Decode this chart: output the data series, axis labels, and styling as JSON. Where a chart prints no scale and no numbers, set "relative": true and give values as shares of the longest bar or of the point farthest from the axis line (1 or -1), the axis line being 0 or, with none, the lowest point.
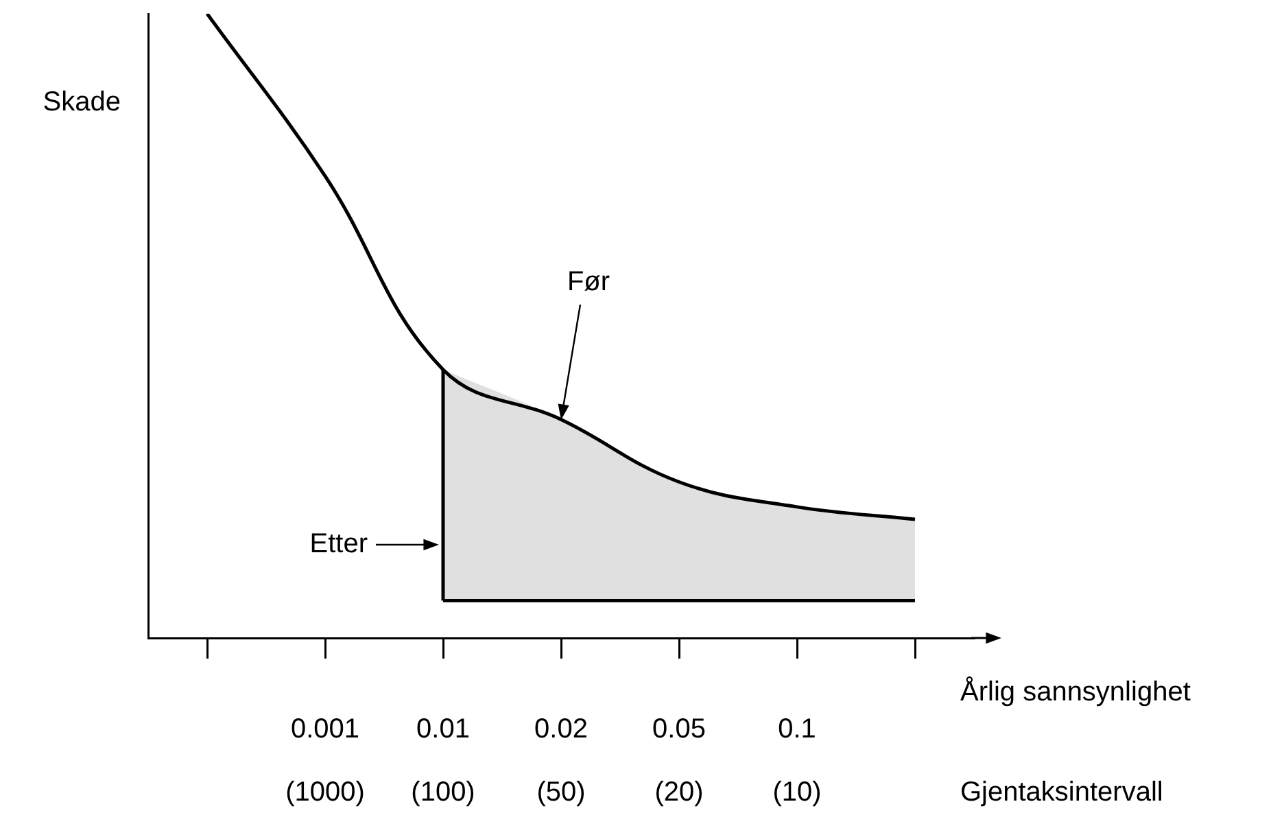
{
  "chart_data": {
    "type": "line",
    "relative": true,
    "ylabel": "Skade",
    "xlabel": "Årlig sannsynlighet",
    "categories": [
      null,
      "0.001",
      "0.01",
      "0.02",
      "0.05",
      "0.1",
      null
    ],
    "series": [
      {
        "type": "line",
        "color": "#000000",
        "values": [
          1.0,
          0.74,
          0.43,
          0.35,
          0.25,
          0.21,
          0.19
        ]
      },
      {
        "type": "area",
        "color": "#e0e0e0",
        "values": [
          null,
          null,
          0.43,
          0.35,
          0.25,
          0.21,
          0.19
        ]
      },
      {
        "type": "line",
        "color": "#000000",
        "values": [
          null,
          null,
          0.06,
          0.06,
          0.06,
          0.06,
          0.06
        ]
      },
      {
        "type": "line",
        "color": "#000000",
        "x": [
          "0.01",
          "0.01"
        ],
        "values": [
          0.06,
          0.43
        ]
      }
    ],
    "annotations": [
      {
        "text": "Før",
        "x": "0.02",
        "y": 0.35
      },
      {
        "text": "Etter",
        "x": "0.01",
        "y": 0.15
      },
      "(1000)",
      "(100)",
      "(50)",
      "(20)",
      "(10)",
      "Gjentaksintervall"
    ],
    "legend": false,
    "grid": false,
    "marker": "none"
  }
}
